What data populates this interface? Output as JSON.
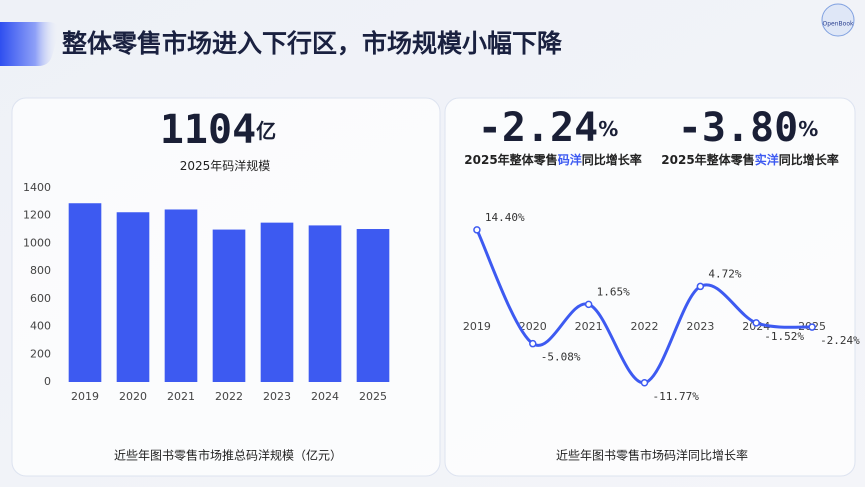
{
  "title": "整体零售市场进入下行区，市场规模小幅下降",
  "logo": "OpenBook",
  "stats": [
    {
      "value": "1104",
      "unit": "亿",
      "label": [
        "2025年码洋规模"
      ]
    },
    {
      "value": "-2.24",
      "unit": "%",
      "label": [
        "2025年整体零售",
        "码洋",
        "同比增长率"
      ]
    },
    {
      "value": "-3.80",
      "unit": "%",
      "label": [
        "2025年整体零售",
        "实洋",
        "同比增长率"
      ]
    }
  ],
  "chart_data": [
    {
      "type": "bar",
      "caption": "近些年图书零售市场推总码洋规模（亿元）",
      "categories": [
        "2019",
        "2020",
        "2021",
        "2022",
        "2023",
        "2024",
        "2025"
      ],
      "values": [
        1290,
        1225,
        1245,
        1100,
        1150,
        1130,
        1104
      ],
      "color": "#3d5af1",
      "ylim": [
        0,
        1400
      ],
      "yticks": [
        0,
        200,
        400,
        600,
        800,
        1000,
        1200,
        1400
      ],
      "grid": false
    },
    {
      "type": "line",
      "caption": "近些年图书零售市场码洋同比增长率",
      "categories": [
        "2019",
        "2020",
        "2021",
        "2022",
        "2023",
        "2024",
        "2025"
      ],
      "values": [
        14.4,
        -5.08,
        1.65,
        -11.77,
        4.72,
        -1.52,
        -2.24
      ],
      "value_labels": [
        "14.40%",
        "-5.08%",
        "1.65%",
        "-11.77%",
        "4.72%",
        "-1.52%",
        "-2.24%"
      ],
      "color": "#3d5af1",
      "ylim": [
        -14,
        16
      ]
    }
  ]
}
